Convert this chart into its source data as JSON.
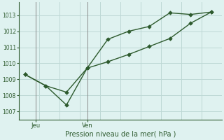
{
  "line1_x": [
    0,
    1,
    2,
    3,
    4,
    5,
    6,
    7,
    8,
    9
  ],
  "line1_y": [
    1009.3,
    1008.6,
    1007.4,
    1009.7,
    1011.5,
    1012.0,
    1012.3,
    1013.15,
    1013.05,
    1013.2
  ],
  "line2_x": [
    0,
    1,
    2,
    3,
    4,
    5,
    6,
    7,
    8,
    9
  ],
  "line2_y": [
    1009.3,
    1008.6,
    1008.2,
    1009.7,
    1010.1,
    1010.55,
    1011.05,
    1011.55,
    1012.5,
    1013.2
  ],
  "vline_jeu_x": 0.5,
  "vline_ven_x": 3.0,
  "xtick_positions": [
    0.5,
    3.0
  ],
  "xtick_labels": [
    "Jeu",
    "Ven"
  ],
  "ytick_positions": [
    1007,
    1008,
    1009,
    1010,
    1011,
    1012,
    1013
  ],
  "ylim": [
    1006.5,
    1013.8
  ],
  "xlim": [
    -0.3,
    9.5
  ],
  "xlabel": "Pression niveau de la mer( hPa )",
  "line_color": "#2d5a2d",
  "bg_color": "#dff2f0",
  "grid_color": "#bdd8d5",
  "vline_color": "#888888",
  "marker": "D",
  "marker_size": 2.8,
  "line_width": 1.0,
  "ytick_fontsize": 5.5,
  "xtick_fontsize": 6.0,
  "xlabel_fontsize": 7.0
}
